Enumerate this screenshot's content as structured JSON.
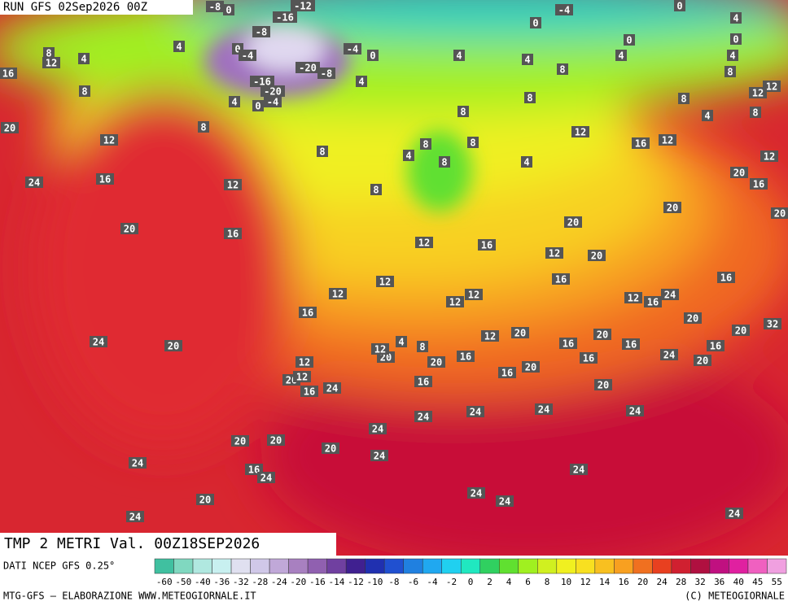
{
  "header": {
    "run": "RUN GFS 02Sep2026 00Z"
  },
  "footer": {
    "title": "TMP 2 METRI Val. 00Z18SEP2026",
    "source": "DATI NCEP GFS 0.25°",
    "credit": "MTG-GFS — ELABORAZIONE WWW.METEOGIORNALE.IT",
    "copyright": "(C) METEOGIORNALE"
  },
  "legend": {
    "labels": [
      -60,
      -50,
      -40,
      -36,
      -32,
      -28,
      -24,
      -20,
      -16,
      -14,
      -12,
      -10,
      -8,
      -6,
      -4,
      -2,
      0,
      2,
      4,
      6,
      8,
      10,
      12,
      14,
      16,
      20,
      24,
      28,
      32,
      36,
      40,
      45,
      55
    ],
    "colors": [
      "#40c0a0",
      "#80d8c0",
      "#b0e8e0",
      "#c8f0f0",
      "#e0e0f0",
      "#d0c8e8",
      "#c0a8d8",
      "#a880c0",
      "#9060b0",
      "#7040a0",
      "#402090",
      "#2030b0",
      "#2050d0",
      "#2080e0",
      "#20a8f0",
      "#20d0f0",
      "#20e8c0",
      "#30d060",
      "#60e030",
      "#a0f020",
      "#d0f020",
      "#f0f020",
      "#f8e020",
      "#f8c020",
      "#f8a020",
      "#f07020",
      "#e84020",
      "#d02030",
      "#b01040",
      "#c01080",
      "#e020a0",
      "#f060c0",
      "#f0a0e0"
    ]
  },
  "map": {
    "labels": [
      -8,
      0,
      -12,
      -16,
      -8,
      0,
      -4,
      -4,
      -20,
      -8,
      0,
      -16,
      -20,
      -4,
      0,
      4,
      4,
      4,
      8,
      12,
      16,
      8,
      20,
      12,
      8,
      16,
      24,
      12,
      8,
      4,
      4,
      8,
      8,
      8,
      4,
      0,
      -4,
      0,
      4,
      0,
      4,
      0,
      4,
      8,
      12,
      12,
      8,
      4,
      8,
      12,
      16,
      12,
      12,
      20,
      16,
      20,
      20,
      20,
      20,
      12,
      16,
      12,
      16,
      24,
      16,
      20,
      20,
      32,
      16,
      20,
      24,
      16,
      20,
      16,
      16,
      20,
      16,
      20,
      12,
      16,
      20,
      20,
      12,
      4,
      8,
      16,
      24,
      24,
      24,
      20,
      24,
      24,
      24,
      20,
      24,
      16,
      12,
      20,
      12,
      20,
      20,
      16,
      24,
      24,
      20,
      24,
      24,
      24,
      24,
      24,
      20,
      24,
      20,
      16,
      16,
      12,
      12,
      12,
      16,
      12,
      12,
      8,
      4,
      8,
      8,
      8,
      4
    ]
  }
}
